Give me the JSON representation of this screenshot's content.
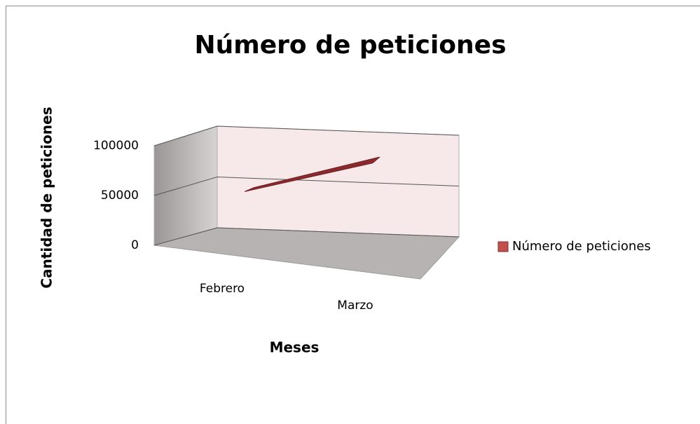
{
  "chart_data": {
    "type": "line3d",
    "title": "Número de peticiones",
    "x_label": "Meses",
    "y_label": "Cantidad de peticiones",
    "categories": [
      "Febrero",
      "Marzo"
    ],
    "series": [
      {
        "name": "Número de peticiones",
        "color": "#8b2a2e",
        "values": [
          52000,
          92000
        ]
      }
    ],
    "ylim": [
      0,
      100000
    ],
    "yticks": [
      0,
      50000,
      100000
    ],
    "grid": true,
    "legend": "right"
  }
}
